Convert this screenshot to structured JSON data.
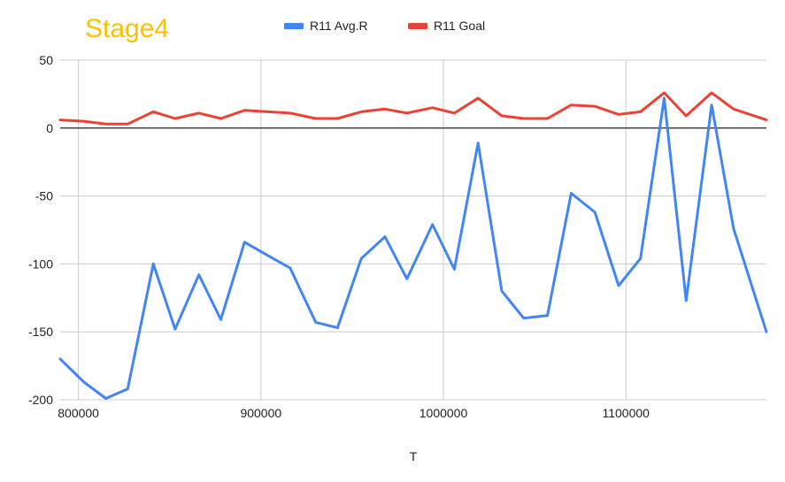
{
  "chart_data": {
    "type": "line",
    "title": "Stage4",
    "xlabel": "T",
    "ylabel": "",
    "xlim": [
      790000,
      1177000
    ],
    "ylim": [
      -200,
      50
    ],
    "grid": true,
    "legend_position": "top",
    "x_ticks": [
      "800000",
      "900000",
      "1000000",
      "1100000"
    ],
    "y_ticks": [
      "50",
      "0",
      "-50",
      "-100",
      "-150",
      "-200"
    ],
    "colors": {
      "title": "#f9c100",
      "zero_line": "#444444",
      "grid": "#cccccc"
    },
    "series": [
      {
        "name": "R11 Avg.R",
        "color": "#4285f4",
        "points": [
          [
            790000,
            -170
          ],
          [
            803000,
            -187
          ],
          [
            815000,
            -199
          ],
          [
            827000,
            -192
          ],
          [
            841000,
            -100
          ],
          [
            853000,
            -148
          ],
          [
            866000,
            -108
          ],
          [
            878000,
            -141
          ],
          [
            891000,
            -84
          ],
          [
            904000,
            -94
          ],
          [
            916000,
            -103
          ],
          [
            930000,
            -143
          ],
          [
            942000,
            -147
          ],
          [
            955000,
            -96
          ],
          [
            968000,
            -80
          ],
          [
            980000,
            -111
          ],
          [
            994000,
            -71
          ],
          [
            1006000,
            -104
          ],
          [
            1019000,
            -11
          ],
          [
            1032000,
            -120
          ],
          [
            1044000,
            -140
          ],
          [
            1057000,
            -138
          ],
          [
            1070000,
            -48
          ],
          [
            1083000,
            -62
          ],
          [
            1096000,
            -116
          ],
          [
            1108000,
            -96
          ],
          [
            1121000,
            22
          ],
          [
            1133000,
            -127
          ],
          [
            1147000,
            17
          ],
          [
            1159000,
            -74
          ],
          [
            1177000,
            -150
          ]
        ]
      },
      {
        "name": "R11 Goal",
        "color": "#ea4335",
        "points": [
          [
            790000,
            6
          ],
          [
            803000,
            5
          ],
          [
            815000,
            3
          ],
          [
            827000,
            3
          ],
          [
            841000,
            12
          ],
          [
            853000,
            7
          ],
          [
            866000,
            11
          ],
          [
            878000,
            7
          ],
          [
            891000,
            13
          ],
          [
            904000,
            12
          ],
          [
            916000,
            11
          ],
          [
            930000,
            7
          ],
          [
            942000,
            7
          ],
          [
            955000,
            12
          ],
          [
            968000,
            14
          ],
          [
            980000,
            11
          ],
          [
            994000,
            15
          ],
          [
            1006000,
            11
          ],
          [
            1019000,
            22
          ],
          [
            1032000,
            9
          ],
          [
            1044000,
            7
          ],
          [
            1057000,
            7
          ],
          [
            1070000,
            17
          ],
          [
            1083000,
            16
          ],
          [
            1096000,
            10
          ],
          [
            1108000,
            12
          ],
          [
            1121000,
            26
          ],
          [
            1133000,
            9
          ],
          [
            1147000,
            26
          ],
          [
            1159000,
            14
          ],
          [
            1177000,
            6
          ]
        ]
      }
    ]
  }
}
